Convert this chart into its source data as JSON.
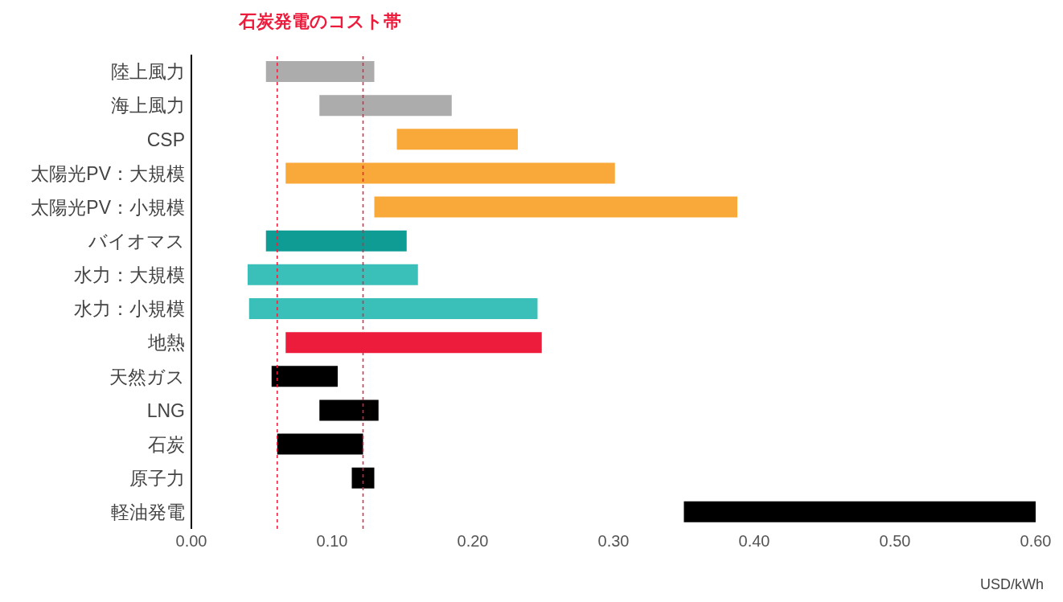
{
  "chart_data": {
    "type": "bar",
    "orientation": "horizontal",
    "categories": [
      "陸上風力",
      "海上風力",
      "CSP",
      "太陽光PV：大規模",
      "太陽光PV：小規模",
      "バイオマス",
      "水力：大規模",
      "水力：小規模",
      "地熱",
      "天然ガス",
      "LNG",
      "石炭",
      "原子力",
      "軽油発電"
    ],
    "base": [
      0.053,
      0.091,
      0.146,
      0.067,
      0.13,
      0.053,
      0.04,
      0.041,
      0.067,
      0.057,
      0.091,
      0.061,
      0.114,
      0.35
    ],
    "values": [
      0.077,
      0.094,
      0.086,
      0.234,
      0.258,
      0.1,
      0.121,
      0.205,
      0.182,
      0.047,
      0.042,
      0.061,
      0.016,
      0.25
    ],
    "colors": [
      "#acacac",
      "#acacac",
      "#f9a93a",
      "#f9a93a",
      "#f9a93a",
      "#0f9c94",
      "#3bbfb9",
      "#3bbfb9",
      "#ed1c3c",
      "#000000",
      "#000000",
      "#000000",
      "#000000",
      "#000000"
    ],
    "xlim": [
      0,
      0.6
    ],
    "xticks": [
      {
        "value": 0,
        "label": "0.00"
      },
      {
        "value": 0.1,
        "label": "0.10"
      },
      {
        "value": 0.2,
        "label": "0.20"
      },
      {
        "value": 0.3,
        "label": "0.30"
      },
      {
        "value": 0.4,
        "label": "0.40"
      },
      {
        "value": 0.5,
        "label": "0.50"
      },
      {
        "value": 0.6,
        "label": "0.60"
      }
    ],
    "xlabel": "USD/kWh",
    "ref_lines": [
      {
        "axis": "x",
        "value": 0.061,
        "color": "#ed1c3c",
        "line_style": "dashed"
      },
      {
        "axis": "x",
        "value": 0.122,
        "color": "#ed1c3c",
        "line_style": "dashed"
      }
    ],
    "annotations": [
      "石炭発電のコスト帯"
    ]
  }
}
